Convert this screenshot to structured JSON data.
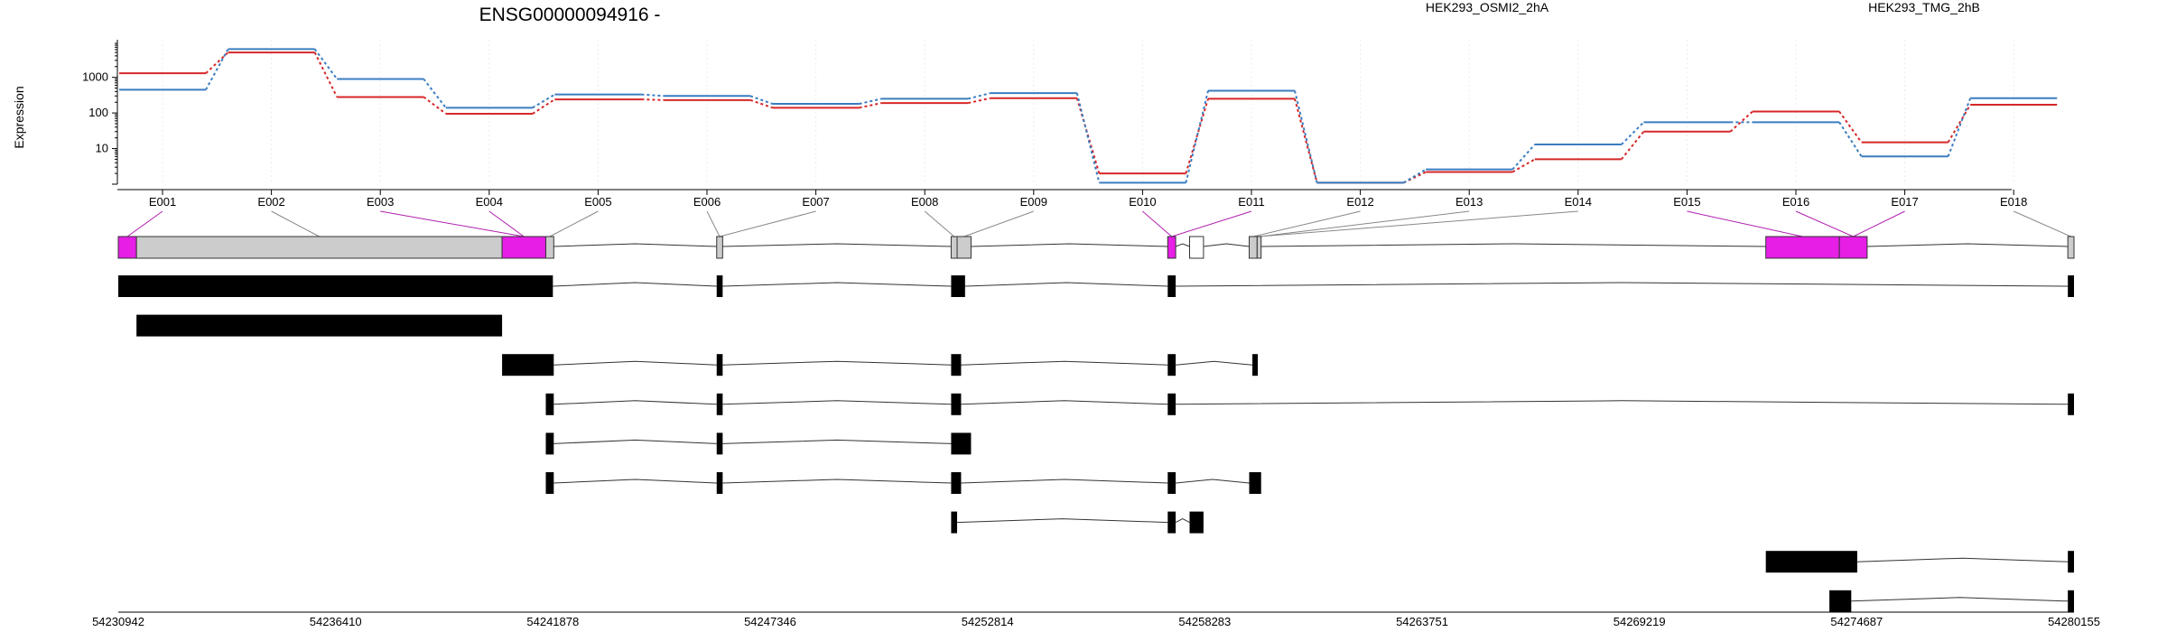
{
  "chart_data": {
    "type": "line",
    "title": "ENSG00000094916 -",
    "ylabel": "Expression",
    "yscale": "log",
    "y_ticks": [
      10,
      100,
      1000
    ],
    "y_range": [
      1,
      9000
    ],
    "grid": "vertical dotted at exon centers",
    "legend_placement": "top",
    "categories": [
      "E001",
      "E002",
      "E003",
      "E004",
      "E005",
      "E006",
      "E007",
      "E008",
      "E009",
      "E010",
      "E011",
      "E012",
      "E013",
      "E014",
      "E015",
      "E016",
      "E017",
      "E018"
    ],
    "series": [
      {
        "name": "HEK293_OSMI2_2hA",
        "color": "#d62728",
        "values": [
          1300,
          5000,
          280,
          95,
          240,
          230,
          140,
          190,
          260,
          2.0,
          250,
          1.1,
          2.2,
          5,
          30,
          110,
          15,
          170
        ]
      },
      {
        "name": "HEK293_TMG_2hB",
        "color": "#3a7dc0",
        "values": [
          450,
          6200,
          900,
          140,
          330,
          300,
          180,
          250,
          360,
          1.1,
          420,
          1.1,
          2.6,
          13,
          55,
          55,
          6,
          260
        ]
      }
    ],
    "genomic_axis": {
      "start": 54230942,
      "end": 54280155,
      "ticks": [
        54230942,
        54236410,
        54241878,
        54247346,
        54252814,
        54258283,
        54263751,
        54269219,
        54274687,
        54280155
      ]
    },
    "exon_bins": [
      {
        "id": "E001",
        "start": 54230942,
        "end": 54231400,
        "color": "#e61ee6"
      },
      {
        "id": "E002",
        "start": 54231400,
        "end": 54240600,
        "color": "#cccccc"
      },
      {
        "id": "E003",
        "start": 54240600,
        "end": 54241700,
        "color": "#e61ee6"
      },
      {
        "id": "E004",
        "start": 54241700,
        "end": 54241900,
        "color": "#cccccc"
      },
      {
        "id": "E005",
        "start": 54246000,
        "end": 54246150,
        "color": "#cccccc"
      },
      {
        "id": "E006",
        "start": 54251900,
        "end": 54252050,
        "color": "#cccccc"
      },
      {
        "id": "E007",
        "start": 54252050,
        "end": 54252400,
        "color": "#cccccc"
      },
      {
        "id": "E008",
        "start": 54257350,
        "end": 54257550,
        "color": "#e61ee6"
      },
      {
        "id": "E009",
        "start": 54257900,
        "end": 54258250,
        "color": "#ffffff"
      },
      {
        "id": "E010",
        "start": 54259400,
        "end": 54259600,
        "color": "#cccccc"
      },
      {
        "id": "E011",
        "start": 54259600,
        "end": 54259700,
        "color": "#cccccc"
      },
      {
        "id": "E012",
        "start": 54272400,
        "end": 54274250,
        "color": "#e61ee6"
      },
      {
        "id": "E013",
        "start": 54274250,
        "end": 54274950,
        "color": "#e61ee6"
      },
      {
        "id": "E014",
        "start": 54280000,
        "end": 54280155,
        "color": "#cccccc"
      }
    ],
    "connector_map": [
      {
        "label": "E001",
        "bin": 0
      },
      {
        "label": "E002",
        "bin": 1
      },
      {
        "label": "E003",
        "bin": 2
      },
      {
        "label": "E004",
        "bin": 2
      },
      {
        "label": "E005",
        "bin": 3
      },
      {
        "label": "E006",
        "bin": 4
      },
      {
        "label": "E007",
        "bin": 4
      },
      {
        "label": "E008",
        "bin": 5
      },
      {
        "label": "E009",
        "bin": 6
      },
      {
        "label": "E010",
        "bin": 7
      },
      {
        "label": "E011",
        "bin": 7
      },
      {
        "label": "E012",
        "bin": 9
      },
      {
        "label": "E013",
        "bin": 10
      },
      {
        "label": "E014",
        "bin": 10
      },
      {
        "label": "E015",
        "bin": 11
      },
      {
        "label": "E016",
        "bin": 12
      },
      {
        "label": "E017",
        "bin": 12
      },
      {
        "label": "E018",
        "bin": 13
      }
    ],
    "transcripts": [
      [
        [
          54230942,
          54241878
        ],
        [
          54246000,
          54246150
        ],
        [
          54251900,
          54252250
        ],
        [
          54257350,
          54257550
        ],
        [
          54280000,
          54280155
        ]
      ],
      [
        [
          54231400,
          54240600
        ]
      ],
      [
        [
          54240600,
          54241900
        ],
        [
          54246000,
          54246150
        ],
        [
          54251900,
          54252150
        ],
        [
          54257350,
          54257550
        ],
        [
          54259480,
          54259560
        ]
      ],
      [
        [
          54241700,
          54241900
        ],
        [
          54246000,
          54246150
        ],
        [
          54251900,
          54252150
        ],
        [
          54257350,
          54257550
        ],
        [
          54280000,
          54280155
        ]
      ],
      [
        [
          54241700,
          54241900
        ],
        [
          54246000,
          54246150
        ],
        [
          54251900,
          54252400
        ]
      ],
      [
        [
          54241700,
          54241900
        ],
        [
          54246000,
          54246150
        ],
        [
          54251900,
          54252150
        ],
        [
          54257350,
          54257550
        ],
        [
          54259400,
          54259700
        ]
      ],
      [
        [
          54251900,
          54252050
        ],
        [
          54257350,
          54257550
        ],
        [
          54257900,
          54258250
        ]
      ],
      [
        [
          54272400,
          54274700
        ],
        [
          54280000,
          54280155
        ]
      ],
      [
        [
          54274000,
          54274550
        ],
        [
          54280000,
          54280155
        ]
      ]
    ]
  }
}
